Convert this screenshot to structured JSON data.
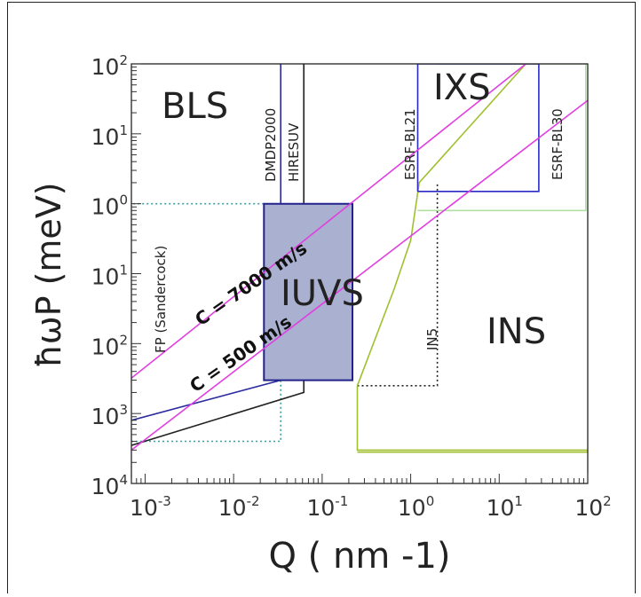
{
  "chart_data": {
    "type": "line",
    "xlabel": "Q  ( nm -1)",
    "ylabel": "ħωP (meV)",
    "x_scale": "log",
    "y_scale": "log",
    "xlim": [
      0.0007,
      100
    ],
    "ylim": [
      0.0001,
      100
    ],
    "x_ticks": [
      {
        "base": "10",
        "exp": "-3",
        "value": 0.001
      },
      {
        "base": "10",
        "exp": "-2",
        "value": 0.01
      },
      {
        "base": "10",
        "exp": "-1",
        "value": 0.1
      },
      {
        "base": "10",
        "exp": "0",
        "value": 1
      },
      {
        "base": "10",
        "exp": "1",
        "value": 10
      },
      {
        "base": "10",
        "exp": "2",
        "value": 100
      }
    ],
    "y_ticks": [
      {
        "base": "10",
        "exp": "4",
        "value": 0.0001
      },
      {
        "base": "10",
        "exp": "3",
        "value": 0.001
      },
      {
        "base": "10",
        "exp": "2",
        "value": 0.01
      },
      {
        "base": "10",
        "exp": "1",
        "value": 0.1
      },
      {
        "base": "10",
        "exp": "0",
        "value": 1
      },
      {
        "base": "10",
        "exp": "1",
        "value": 10
      },
      {
        "base": "10",
        "exp": "2",
        "value": 100
      }
    ],
    "region_labels": [
      {
        "id": "bls",
        "text": "BLS"
      },
      {
        "id": "ixs",
        "text": "IXS"
      },
      {
        "id": "ins",
        "text": "INS"
      },
      {
        "id": "iuvs",
        "text": "IUVS"
      }
    ],
    "series": [
      {
        "name": "FP (Sandercock)",
        "color": "#3aa0a0",
        "style": "dotted",
        "points": [
          [
            0.0007,
            0.0004
          ],
          [
            0.034,
            0.0004
          ],
          [
            0.034,
            1.0
          ],
          [
            0.0007,
            1.0
          ]
        ]
      },
      {
        "name": "DMDP2000",
        "color": "#2a2aa0",
        "style": "solid",
        "points": [
          [
            0.0007,
            0.0008
          ],
          [
            0.034,
            0.003
          ],
          [
            0.034,
            100
          ]
        ]
      },
      {
        "name": "HIRESUV",
        "color": "#222222",
        "style": "solid",
        "points": [
          [
            0.0007,
            0.00035
          ],
          [
            0.062,
            0.002
          ],
          [
            0.062,
            100
          ]
        ]
      },
      {
        "name": "IUVS",
        "color": "#22228a",
        "style": "filled",
        "fill": "#aab0d0",
        "points": [
          [
            0.022,
            0.003
          ],
          [
            0.22,
            0.003
          ],
          [
            0.22,
            1.0
          ],
          [
            0.022,
            1.0
          ]
        ]
      },
      {
        "name": "IN5",
        "color": "#222222",
        "style": "dotted",
        "points": [
          [
            0.25,
            0.0025
          ],
          [
            2.0,
            0.0025
          ],
          [
            2.0,
            2.0
          ]
        ]
      },
      {
        "name": "ESRF-BL21",
        "color": "#a0c030",
        "style": "solid",
        "points": [
          [
            0.25,
            0.00028
          ],
          [
            100,
            0.00028
          ],
          [
            100,
            0.0003
          ],
          [
            0.25,
            0.0003
          ],
          [
            0.25,
            0.0025
          ],
          [
            0.65,
            0.06
          ],
          [
            1.0,
            0.3
          ],
          [
            1.25,
            2.0
          ],
          [
            20,
            100
          ]
        ]
      },
      {
        "name": "ESRF-BL30",
        "color": "#b0e0a0",
        "style": "solid",
        "points": [
          [
            1.2,
            0.8
          ],
          [
            95,
            0.8
          ],
          [
            95,
            100
          ],
          [
            2.0,
            100
          ]
        ]
      },
      {
        "name": "IXS",
        "color": "#2a2ac8",
        "style": "solid",
        "points": [
          [
            1.2,
            1.5
          ],
          [
            28,
            1.5
          ],
          [
            28,
            100
          ],
          [
            1.2,
            100
          ],
          [
            1.2,
            1.5
          ]
        ]
      },
      {
        "name": "C = 7000 m/s",
        "color": "#e040e0",
        "style": "solid",
        "points": [
          [
            0.0007,
            0.0032
          ],
          [
            20,
            100
          ]
        ]
      },
      {
        "name": "C = 500 m/s",
        "color": "#e040e0",
        "style": "solid",
        "points": [
          [
            0.0007,
            0.0003
          ],
          [
            100,
            30
          ]
        ]
      }
    ],
    "line_labels": [
      {
        "id": "fp",
        "text": "FP (Sandercock)"
      },
      {
        "id": "dmdp",
        "text": "DMDP2000"
      },
      {
        "id": "hiresuv",
        "text": "HIRESUV"
      },
      {
        "id": "bl21",
        "text": "ESRF-BL21"
      },
      {
        "id": "bl30",
        "text": "ESRF-BL30"
      },
      {
        "id": "in5",
        "text": "IN5"
      },
      {
        "id": "c7000",
        "text": "C = 7000 m/s"
      },
      {
        "id": "c500",
        "text": "C = 500 m/s"
      }
    ],
    "grid": false
  }
}
